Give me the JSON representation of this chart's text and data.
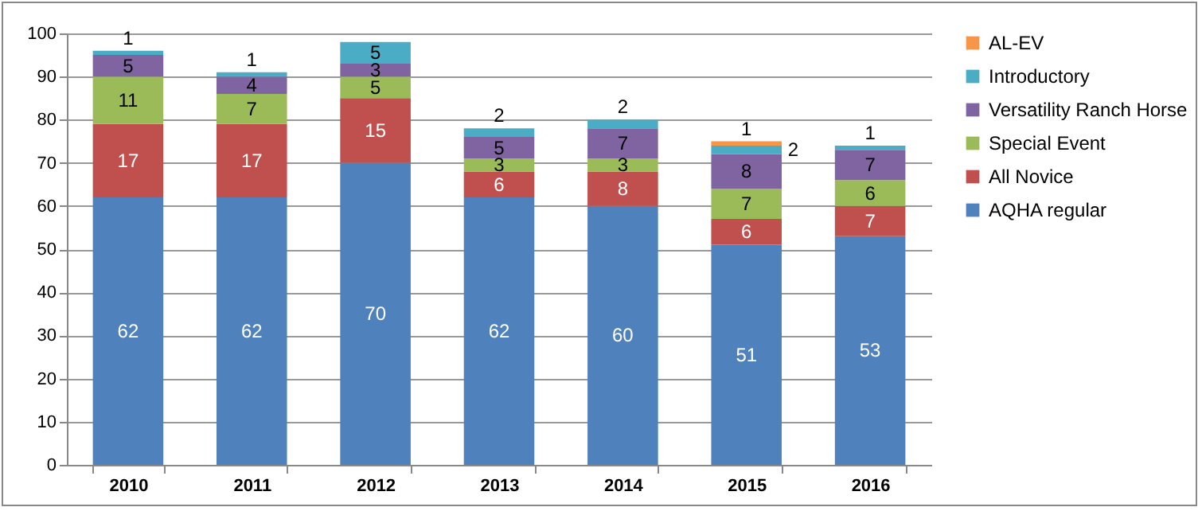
{
  "chart_data": {
    "type": "bar",
    "stacked": true,
    "categories": [
      "2010",
      "2011",
      "2012",
      "2013",
      "2014",
      "2015",
      "2016"
    ],
    "series": [
      {
        "name": "AQHA regular",
        "color": "#4f81bd",
        "values": [
          62,
          62,
          70,
          62,
          60,
          51,
          53
        ]
      },
      {
        "name": "All Novice",
        "color": "#c0504d",
        "values": [
          17,
          17,
          15,
          6,
          8,
          6,
          7
        ]
      },
      {
        "name": "Special Event",
        "color": "#9bbb59",
        "values": [
          11,
          7,
          5,
          3,
          3,
          7,
          6
        ]
      },
      {
        "name": "Versatility Ranch Horse",
        "color": "#8064a2",
        "values": [
          5,
          4,
          3,
          5,
          7,
          8,
          7
        ]
      },
      {
        "name": "Introductory",
        "color": "#4bacc6",
        "values": [
          1,
          1,
          5,
          2,
          2,
          2,
          1
        ]
      },
      {
        "name": "AL-EV",
        "color": "#f79646",
        "values": [
          null,
          null,
          null,
          null,
          null,
          1,
          null
        ]
      }
    ],
    "ylim": [
      0,
      100
    ],
    "yticks": [
      0,
      10,
      20,
      30,
      40,
      50,
      60,
      70,
      80,
      90,
      100
    ],
    "grid": "y",
    "legend": "right",
    "data_labels": true
  }
}
